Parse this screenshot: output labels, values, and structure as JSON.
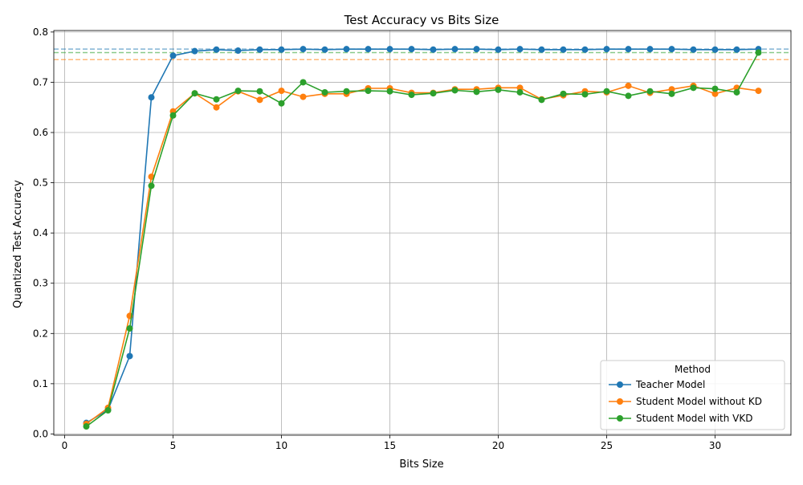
{
  "chart_data": {
    "type": "line",
    "title": "Test Accuracy vs Bits Size",
    "xlabel": "Bits Size",
    "ylabel": "Quantized Test Accuracy",
    "xlim": [
      -0.5,
      33.5
    ],
    "ylim": [
      -0.0025,
      0.803
    ],
    "xticks": [
      0,
      5,
      10,
      15,
      20,
      25,
      30
    ],
    "xtick_labels": [
      "0",
      "5",
      "10",
      "15",
      "20",
      "25",
      "30"
    ],
    "yticks": [
      0.0,
      0.1,
      0.2,
      0.3,
      0.4,
      0.5,
      0.6,
      0.7,
      0.8
    ],
    "ytick_labels": [
      "0.0",
      "0.1",
      "0.2",
      "0.3",
      "0.4",
      "0.5",
      "0.6",
      "0.7",
      "0.8"
    ],
    "grid": true,
    "legend": {
      "title": "Method",
      "placement": "lower right"
    },
    "x": [
      1,
      2,
      3,
      4,
      5,
      6,
      7,
      8,
      9,
      10,
      11,
      12,
      13,
      14,
      15,
      16,
      17,
      18,
      19,
      20,
      21,
      22,
      23,
      24,
      25,
      26,
      27,
      28,
      29,
      30,
      31,
      32
    ],
    "series": [
      {
        "name": "Teacher Model",
        "color": "#1f77b4",
        "values": [
          0.022,
          0.048,
          0.155,
          0.67,
          0.753,
          0.762,
          0.765,
          0.763,
          0.765,
          0.765,
          0.766,
          0.765,
          0.766,
          0.766,
          0.766,
          0.766,
          0.765,
          0.766,
          0.766,
          0.765,
          0.766,
          0.765,
          0.765,
          0.765,
          0.766,
          0.766,
          0.766,
          0.766,
          0.765,
          0.765,
          0.765,
          0.766
        ]
      },
      {
        "name": "Student Model without KD",
        "color": "#ff7f0e",
        "values": [
          0.02,
          0.052,
          0.235,
          0.512,
          0.642,
          0.678,
          0.65,
          0.682,
          0.665,
          0.683,
          0.671,
          0.677,
          0.677,
          0.688,
          0.688,
          0.679,
          0.679,
          0.686,
          0.686,
          0.689,
          0.689,
          0.666,
          0.674,
          0.682,
          0.68,
          0.693,
          0.679,
          0.686,
          0.693,
          0.677,
          0.689,
          0.683
        ]
      },
      {
        "name": "Student Model with VKD",
        "color": "#2ca02c",
        "values": [
          0.015,
          0.047,
          0.21,
          0.494,
          0.634,
          0.678,
          0.666,
          0.683,
          0.682,
          0.658,
          0.7,
          0.68,
          0.682,
          0.683,
          0.682,
          0.675,
          0.678,
          0.684,
          0.681,
          0.685,
          0.68,
          0.665,
          0.677,
          0.676,
          0.682,
          0.673,
          0.682,
          0.677,
          0.689,
          0.687,
          0.68,
          0.759
        ]
      }
    ],
    "reference_lines": [
      {
        "y": 0.766,
        "color": "#1f77b4",
        "style": "dashed"
      },
      {
        "y": 0.745,
        "color": "#ff7f0e",
        "style": "dashed"
      },
      {
        "y": 0.759,
        "color": "#2ca02c",
        "style": "dashed"
      }
    ]
  }
}
